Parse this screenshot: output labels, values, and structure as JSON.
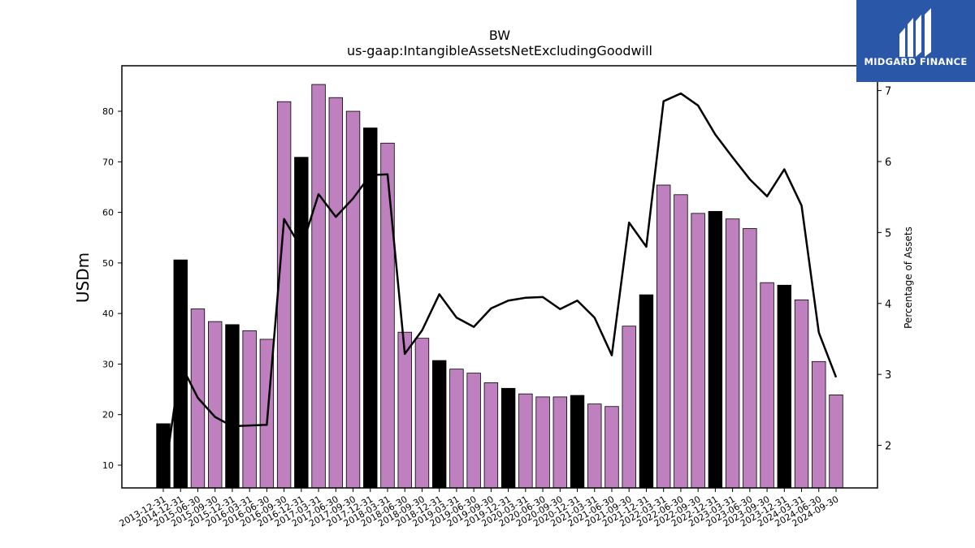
{
  "brand": {
    "name": "MIDGARD FINANCE",
    "bg_color": "#2b57a8"
  },
  "chart_data": {
    "type": "bar",
    "title": "BW",
    "subtitle": "us-gaap:IntangibleAssetsNetExcludingGoodwill",
    "ylabel": "USDm",
    "y2label": "Percentage of Assets",
    "ylim": [
      5.5,
      89
    ],
    "y2lim": [
      1.4,
      7.35
    ],
    "yticks": [
      10,
      20,
      30,
      40,
      50,
      60,
      70,
      80
    ],
    "y2ticks": [
      2,
      3,
      4,
      5,
      6,
      7
    ],
    "colors": {
      "bar": "#bf80bf",
      "bar_year_end": "#000000",
      "line": "#000000"
    },
    "categories": [
      "2013-12-31",
      "2014-12-31",
      "2015-06-30",
      "2015-09-30",
      "2015-12-31",
      "2016-03-31",
      "2016-06-30",
      "2016-09-30",
      "2016-12-31",
      "2017-03-31",
      "2017-06-30",
      "2017-09-30",
      "2017-12-31",
      "2018-03-31",
      "2018-06-30",
      "2018-09-30",
      "2018-12-31",
      "2019-03-31",
      "2019-06-30",
      "2019-09-30",
      "2019-12-31",
      "2020-03-31",
      "2020-06-30",
      "2020-09-30",
      "2020-12-31",
      "2021-03-31",
      "2021-06-30",
      "2021-09-30",
      "2021-12-31",
      "2022-03-31",
      "2022-06-30",
      "2022-09-30",
      "2022-12-31",
      "2023-03-31",
      "2023-06-30",
      "2023-09-30",
      "2023-12-31",
      "2024-03-31",
      "2024-06-30",
      "2024-09-30"
    ],
    "series": [
      {
        "axis": "left",
        "kind": "bar",
        "values": [
          18.2,
          50.6,
          40.9,
          38.4,
          37.8,
          36.6,
          34.9,
          81.9,
          70.9,
          85.3,
          82.7,
          80.0,
          76.7,
          73.7,
          36.3,
          35.1,
          30.7,
          29.0,
          28.2,
          26.3,
          25.2,
          24.1,
          23.5,
          23.5,
          23.8,
          22.1,
          21.6,
          37.5,
          43.7,
          65.4,
          63.5,
          59.8,
          60.2,
          58.7,
          56.8,
          46.1,
          45.6,
          42.7,
          30.5,
          23.9
        ]
      },
      {
        "axis": "right",
        "kind": "line",
        "values": [
          1.45,
          3.15,
          2.67,
          2.4,
          2.27,
          2.28,
          2.29,
          5.19,
          4.78,
          5.54,
          5.22,
          5.48,
          5.81,
          5.82,
          3.29,
          3.62,
          4.13,
          3.8,
          3.67,
          3.93,
          4.04,
          4.08,
          4.09,
          3.92,
          4.04,
          3.8,
          3.27,
          5.14,
          4.8,
          6.85,
          6.96,
          6.79,
          6.38,
          6.06,
          5.75,
          5.51,
          5.89,
          5.38,
          3.59,
          2.96
        ]
      }
    ]
  }
}
